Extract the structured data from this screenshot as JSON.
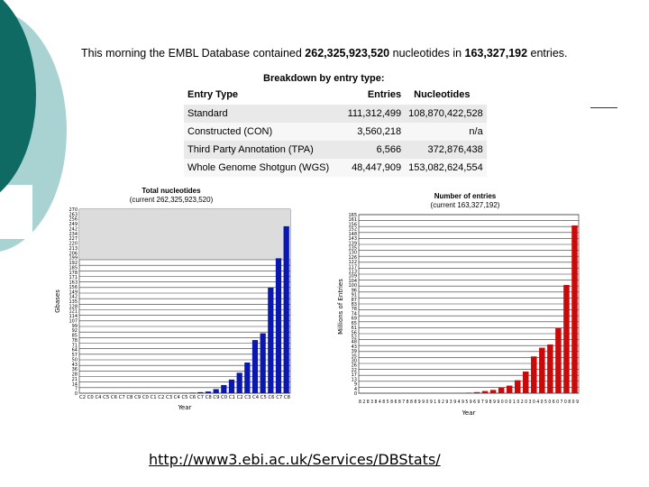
{
  "headline": {
    "prefix": "This morning the EMBL Database contained ",
    "nucleotides": "262,325,923,520",
    "middle": " nucleotides in ",
    "entries": "163,327,192",
    "suffix": " entries."
  },
  "breakdown": {
    "title": "Breakdown by entry type:",
    "headers": [
      "Entry Type",
      "Entries",
      "Nucleotides"
    ],
    "rows": [
      [
        "Standard",
        "111,312,499",
        "108,870,422,528"
      ],
      [
        "Constructed (CON)",
        "3,560,218",
        "n/a"
      ],
      [
        "Third Party Annotation (TPA)",
        "6,566",
        "372,876,438"
      ],
      [
        "Whole Genome Shotgun (WGS)",
        "48,447,909",
        "153,082,624,554"
      ]
    ]
  },
  "url": "http://www3.ebi.ac.uk/Services/DBStats/",
  "chart_data": [
    {
      "type": "bar",
      "title": "Total nucleotides",
      "subtitle": "(current 262,325,923,520)",
      "xlabel": "Year",
      "ylabel": "Gbases",
      "ylim": [
        0,
        270
      ],
      "color": "#0a18b0",
      "x_tick_text": "C2 C0 C4 C5 C6 C7 C8 C9 C0 C1 C2 C3 C4 C5 C6 C7 C8 C9 C0 C1 C2 C3 C4 C5 C6 C7 C8",
      "categories": [
        "1982",
        "1983",
        "1984",
        "1985",
        "1986",
        "1987",
        "1988",
        "1989",
        "1990",
        "1991",
        "1992",
        "1993",
        "1994",
        "1995",
        "1996",
        "1997",
        "1998",
        "1999",
        "2000",
        "2001",
        "2002",
        "2003",
        "2004",
        "2005",
        "2006",
        "2007",
        "2008"
      ],
      "values": [
        0,
        0,
        0,
        0,
        0,
        0,
        0,
        0,
        0,
        0,
        0,
        0.1,
        0.2,
        0.4,
        0.8,
        1.5,
        2.5,
        6,
        12,
        20,
        30,
        45,
        78,
        88,
        155,
        198,
        245
      ]
    },
    {
      "type": "bar",
      "title": "Number of entries",
      "subtitle": "(current 163,327,192)",
      "xlabel": "Year",
      "ylabel": "Millions of Entries",
      "ylim": [
        0,
        165
      ],
      "color": "#c80a0a",
      "x_tick_text": "8 2 8 3 8 4 8 5 8 6 8 7 8 8 8 9 9 0 9 1 9 2 9 3 9 4 9 5 9 6 9 7 9 8 9 9 0 0 0 1 0 2 0 3 0 4 0 5 0 6 0 7 0 8 0 9",
      "categories": [
        "1982",
        "1983",
        "1984",
        "1985",
        "1986",
        "1987",
        "1988",
        "1989",
        "1990",
        "1991",
        "1992",
        "1993",
        "1994",
        "1995",
        "1996",
        "1997",
        "1998",
        "1999",
        "2000",
        "2001",
        "2002",
        "2003",
        "2004",
        "2005",
        "2006",
        "2007",
        "2008"
      ],
      "values": [
        0,
        0,
        0,
        0,
        0,
        0,
        0,
        0,
        0,
        0,
        0,
        0,
        0.2,
        0.5,
        1,
        2,
        3,
        5,
        7,
        12,
        20,
        34,
        42,
        45,
        60,
        100,
        155
      ]
    }
  ]
}
